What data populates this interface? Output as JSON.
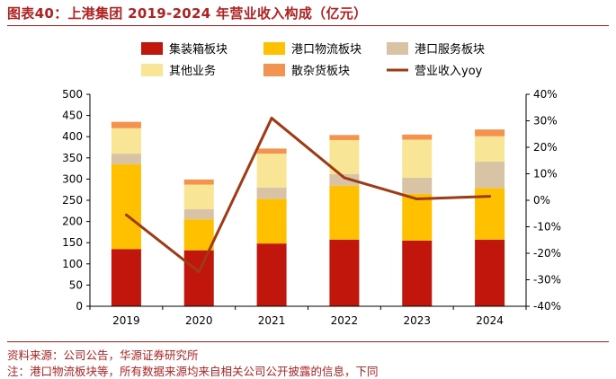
{
  "figure_title": "图表40：上港集团 2019-2024 年营业收入构成（亿元）",
  "source": "资料来源：公司公告，华源证券研究所",
  "note": "注：港口物流板块等，所有数据来源均来自相关公司公开披露的信息，下同",
  "colors": {
    "container": "#c0160c",
    "logistics": "#ffc000",
    "service": "#d9c3a5",
    "other": "#f8e596",
    "bulk": "#f4934f",
    "yoy": "#9e3a14"
  },
  "chart_data": {
    "type": "bar",
    "stacked": true,
    "categories": [
      "2019",
      "2020",
      "2021",
      "2022",
      "2023",
      "2024"
    ],
    "series": [
      {
        "name": "集装箱板块",
        "key": "container",
        "values": [
          135,
          132,
          148,
          157,
          155,
          157
        ]
      },
      {
        "name": "港口物流板块",
        "key": "logistics",
        "values": [
          200,
          73,
          105,
          127,
          110,
          122
        ]
      },
      {
        "name": "港口服务板块",
        "key": "service",
        "values": [
          25,
          24,
          27,
          28,
          38,
          62
        ]
      },
      {
        "name": "其他业务",
        "key": "other",
        "values": [
          60,
          58,
          80,
          80,
          90,
          60
        ]
      },
      {
        "name": "散杂货板块",
        "key": "bulk",
        "values": [
          15,
          12,
          12,
          12,
          12,
          16
        ]
      }
    ],
    "line_series": {
      "name": "营业收入yoy",
      "key": "yoy",
      "axis": "right",
      "values": [
        -5.5,
        -27,
        31,
        8.5,
        0.5,
        1.5
      ]
    },
    "left_axis": {
      "min": 0,
      "max": 500,
      "step": 50
    },
    "right_axis": {
      "min": -40,
      "max": 40,
      "step": 10,
      "format": "percent"
    },
    "legend_order": [
      "container",
      "logistics",
      "service",
      "other",
      "bulk",
      "yoy"
    ]
  }
}
